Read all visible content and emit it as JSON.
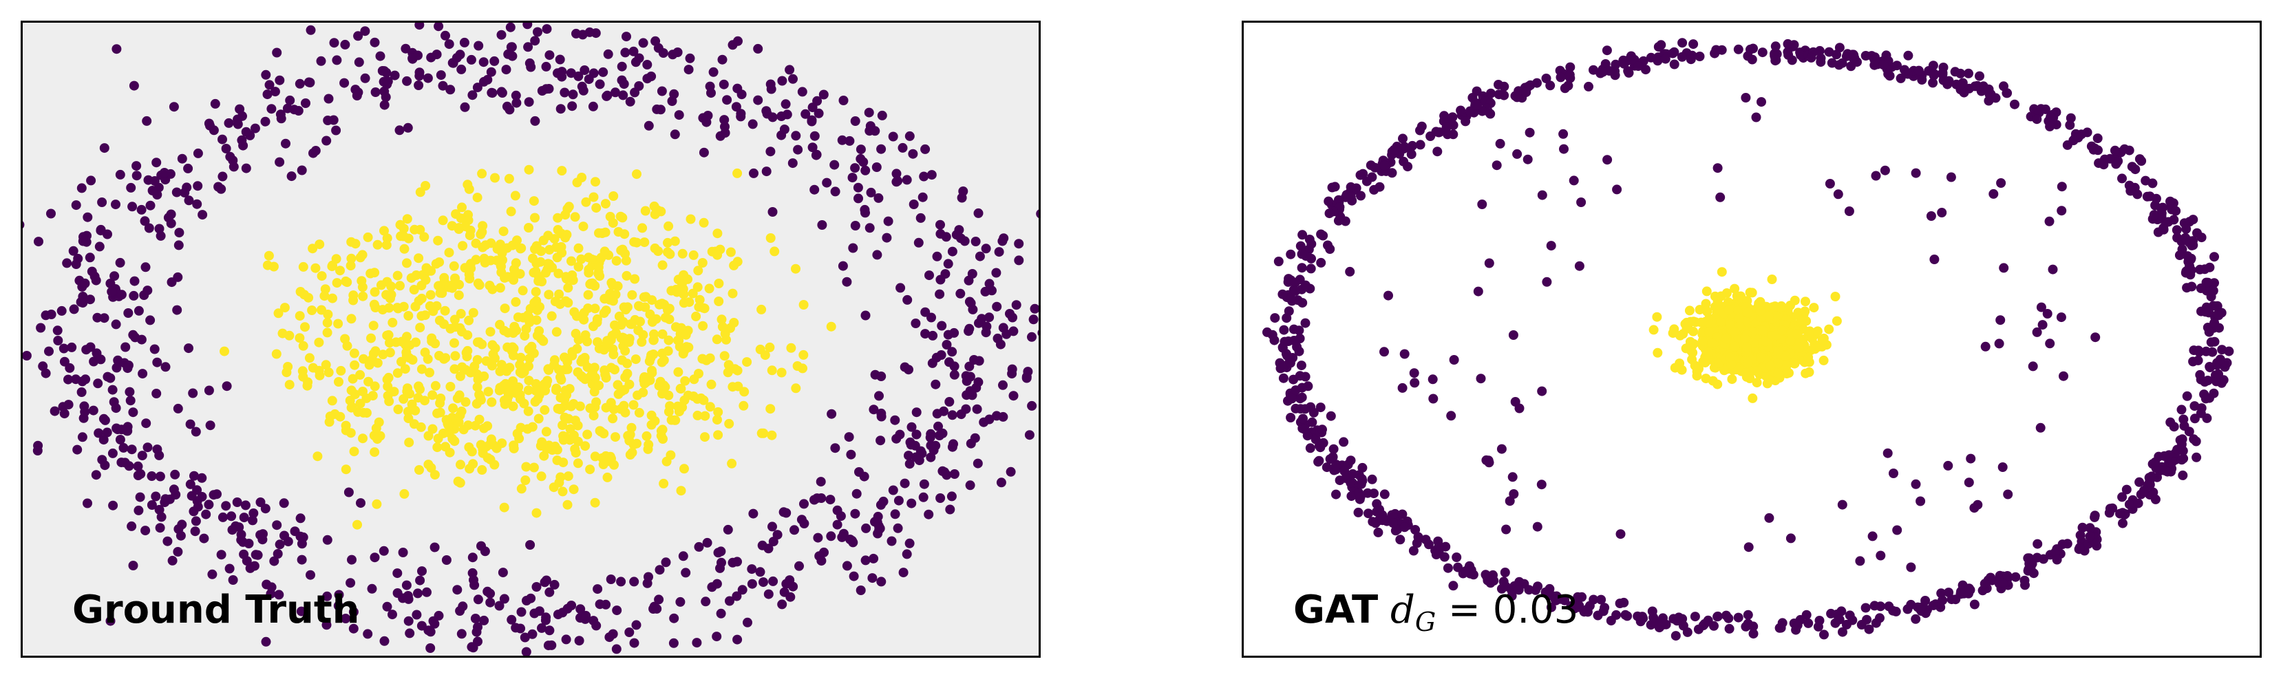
{
  "colors": {
    "class_0": "#440154",
    "class_1": "#fde725",
    "left_background": "#eeeeee",
    "right_background": "#ffffff"
  },
  "chart_data": [
    {
      "type": "scatter",
      "label": "Ground Truth",
      "grid": false,
      "axes_visible": false,
      "xlim": [
        -1.15,
        1.15
      ],
      "ylim": [
        -1.15,
        1.15
      ],
      "series": [
        {
          "class": 0,
          "shape": "ring",
          "center": [
            0,
            0
          ],
          "radius": 1.0,
          "noise": 0.1,
          "count": 1000
        },
        {
          "class": 1,
          "shape": "disk",
          "center": [
            0,
            0
          ],
          "radius": 0.5,
          "noise": 0.1,
          "count": 1000
        }
      ]
    },
    {
      "type": "scatter",
      "label_bold": "GAT",
      "metric_symbol": "d",
      "metric_subscript": "G",
      "metric_value": " = 0.03",
      "grid": false,
      "axes_visible": false,
      "xlim": [
        -1.1,
        1.1
      ],
      "ylim": [
        -1.1,
        1.1
      ],
      "series": [
        {
          "class": 0,
          "shape": "ring",
          "center": [
            0,
            0
          ],
          "radius": 1.0,
          "noise": 0.02,
          "count": 900
        },
        {
          "class": 0,
          "shape": "scattered-inner",
          "center": [
            0,
            0
          ],
          "radius": 0.85,
          "noise": 0.1,
          "count": 100
        },
        {
          "class": 1,
          "shape": "cluster",
          "center": [
            0,
            0
          ],
          "radius": 0.1,
          "noise": 0.05,
          "count": 1000
        }
      ]
    }
  ]
}
